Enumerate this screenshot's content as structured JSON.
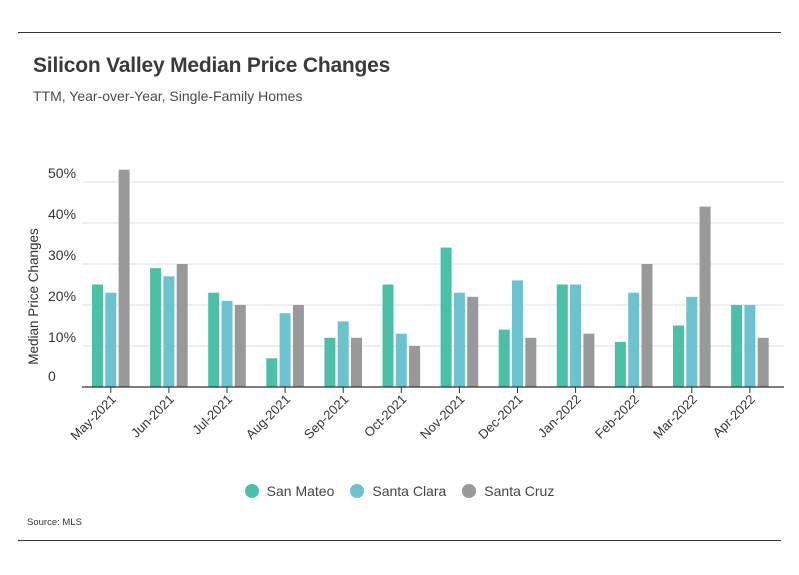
{
  "header": {
    "title": "Silicon Valley Median Price Changes",
    "subtitle": "TTM, Year-over-Year, Single-Family Homes"
  },
  "footer": {
    "source": "Source:  MLS"
  },
  "colors": {
    "san_mateo": "#4dbfa6",
    "santa_clara": "#6cc3cf",
    "santa_cruz": "#999999",
    "gridline": "#dddddd",
    "axis": "#333333"
  },
  "chart_data": {
    "type": "bar",
    "title": "Silicon Valley Median Price Changes",
    "subtitle": "TTM, Year-over-Year, Single-Family Homes",
    "xlabel": "",
    "ylabel": "Median Price Changes",
    "ylim": [
      0,
      50
    ],
    "yticks": [
      0,
      10,
      20,
      30,
      40,
      50
    ],
    "ytick_labels": [
      "0",
      "10%",
      "20%",
      "30%",
      "40%",
      "50%"
    ],
    "grid": true,
    "legend": "bottom",
    "categories": [
      "May-2021",
      "Jun-2021",
      "Jul-2021",
      "Aug-2021",
      "Sep-2021",
      "Oct-2021",
      "Nov-2021",
      "Dec-2021",
      "Jan-2022",
      "Feb-2022",
      "Mar-2022",
      "Apr-2022"
    ],
    "series": [
      {
        "name": "San Mateo",
        "color": "#4dbfa6",
        "values": [
          25,
          29,
          23,
          7,
          12,
          25,
          34,
          14,
          25,
          11,
          15,
          20
        ]
      },
      {
        "name": "Santa Clara",
        "color": "#6cc3cf",
        "values": [
          23,
          27,
          21,
          18,
          16,
          13,
          23,
          26,
          25,
          23,
          22,
          20
        ]
      },
      {
        "name": "Santa Cruz",
        "color": "#999999",
        "values": [
          53,
          30,
          20,
          20,
          12,
          10,
          22,
          12,
          13,
          30,
          44,
          12
        ]
      }
    ]
  }
}
